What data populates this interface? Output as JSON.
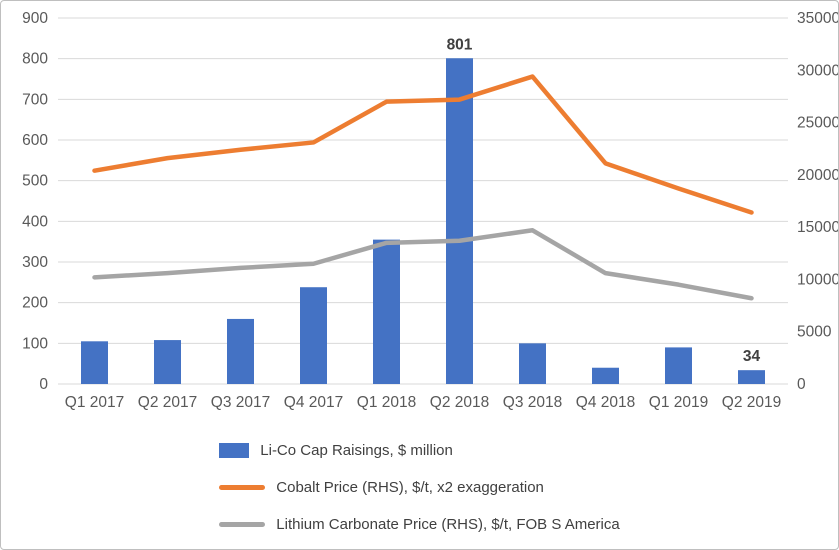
{
  "chart_data": {
    "type": "bar",
    "subtype": "bar+line combo, dual axis",
    "title": "",
    "categories": [
      "Q1 2017",
      "Q2 2017",
      "Q3 2017",
      "Q4 2017",
      "Q1 2018",
      "Q2 2018",
      "Q3 2018",
      "Q4 2018",
      "Q1 2019",
      "Q2 2019"
    ],
    "bar_series": {
      "name": "Li-Co Cap Raisings, $ million",
      "axis": "left",
      "color": "#4472C4",
      "values": [
        105,
        108,
        160,
        238,
        355,
        801,
        100,
        40,
        90,
        34
      ]
    },
    "line_series": [
      {
        "name": "Cobalt Price (RHS), $/t, x2 exaggeration",
        "axis": "right",
        "color": "#ED7D31",
        "values": [
          20400,
          21600,
          22400,
          23100,
          27000,
          27200,
          29400,
          21100,
          18700,
          16400
        ]
      },
      {
        "name": "Lithium Carbonate Price (RHS), $/t, FOB S America",
        "axis": "right",
        "color": "#A5A5A5",
        "values": [
          10200,
          10600,
          11100,
          11500,
          13500,
          13700,
          14700,
          10600,
          9500,
          8200
        ]
      }
    ],
    "bar_value_labels": [
      {
        "index": 5,
        "text": "801"
      },
      {
        "index": 9,
        "text": "34"
      }
    ],
    "left_axis": {
      "min": 0,
      "max": 900,
      "step": 100
    },
    "right_axis": {
      "min": 0,
      "max": 35000,
      "step": 5000
    },
    "grid": true,
    "legend_position": "bottom"
  },
  "legend": {
    "items": [
      {
        "label": "Li-Co Cap Raisings, $ million",
        "swatch": "bar",
        "color": "#4472C4"
      },
      {
        "label": "Cobalt Price (RHS), $/t, x2 exaggeration",
        "swatch": "line",
        "color": "#ED7D31"
      },
      {
        "label": "Lithium Carbonate Price (RHS), $/t, FOB S America",
        "swatch": "line",
        "color": "#A5A5A5"
      }
    ]
  },
  "colors": {
    "bar": "#4472C4",
    "cobalt_line": "#ED7D31",
    "lithium_line": "#A5A5A5",
    "gridline": "#D9D9D9",
    "axis_text": "#595959",
    "data_label": "#404040",
    "border": "#BFBFBF",
    "background": "#FFFFFF"
  }
}
